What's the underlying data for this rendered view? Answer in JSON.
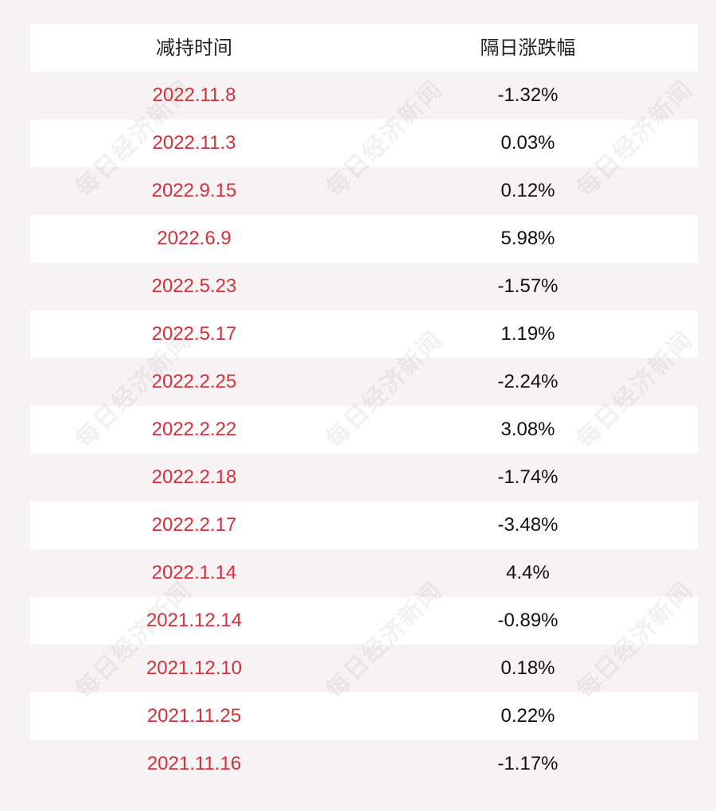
{
  "header": {
    "col_date": "减持时间",
    "col_change": "隔日涨跌幅"
  },
  "rows": [
    {
      "date": "2022.11.8",
      "change": "-1.32%"
    },
    {
      "date": "2022.11.3",
      "change": "0.03%"
    },
    {
      "date": "2022.9.15",
      "change": "0.12%"
    },
    {
      "date": "2022.6.9",
      "change": "5.98%"
    },
    {
      "date": "2022.5.23",
      "change": "-1.57%"
    },
    {
      "date": "2022.5.17",
      "change": "1.19%"
    },
    {
      "date": "2022.2.25",
      "change": "-2.24%"
    },
    {
      "date": "2022.2.22",
      "change": "3.08%"
    },
    {
      "date": "2022.2.18",
      "change": "-1.74%"
    },
    {
      "date": "2022.2.17",
      "change": "-3.48%"
    },
    {
      "date": "2022.1.14",
      "change": "4.4%"
    },
    {
      "date": "2021.12.14",
      "change": "-0.89%"
    },
    {
      "date": "2021.12.10",
      "change": "0.18%"
    },
    {
      "date": "2021.11.25",
      "change": "0.22%"
    },
    {
      "date": "2021.11.16",
      "change": "-1.17%"
    }
  ],
  "watermark": "每日经济新闻",
  "colors": {
    "date_text": "#d5303a",
    "value_text": "#111111",
    "row_light": "#ffffff",
    "row_tinted": "#f7f3f4"
  }
}
